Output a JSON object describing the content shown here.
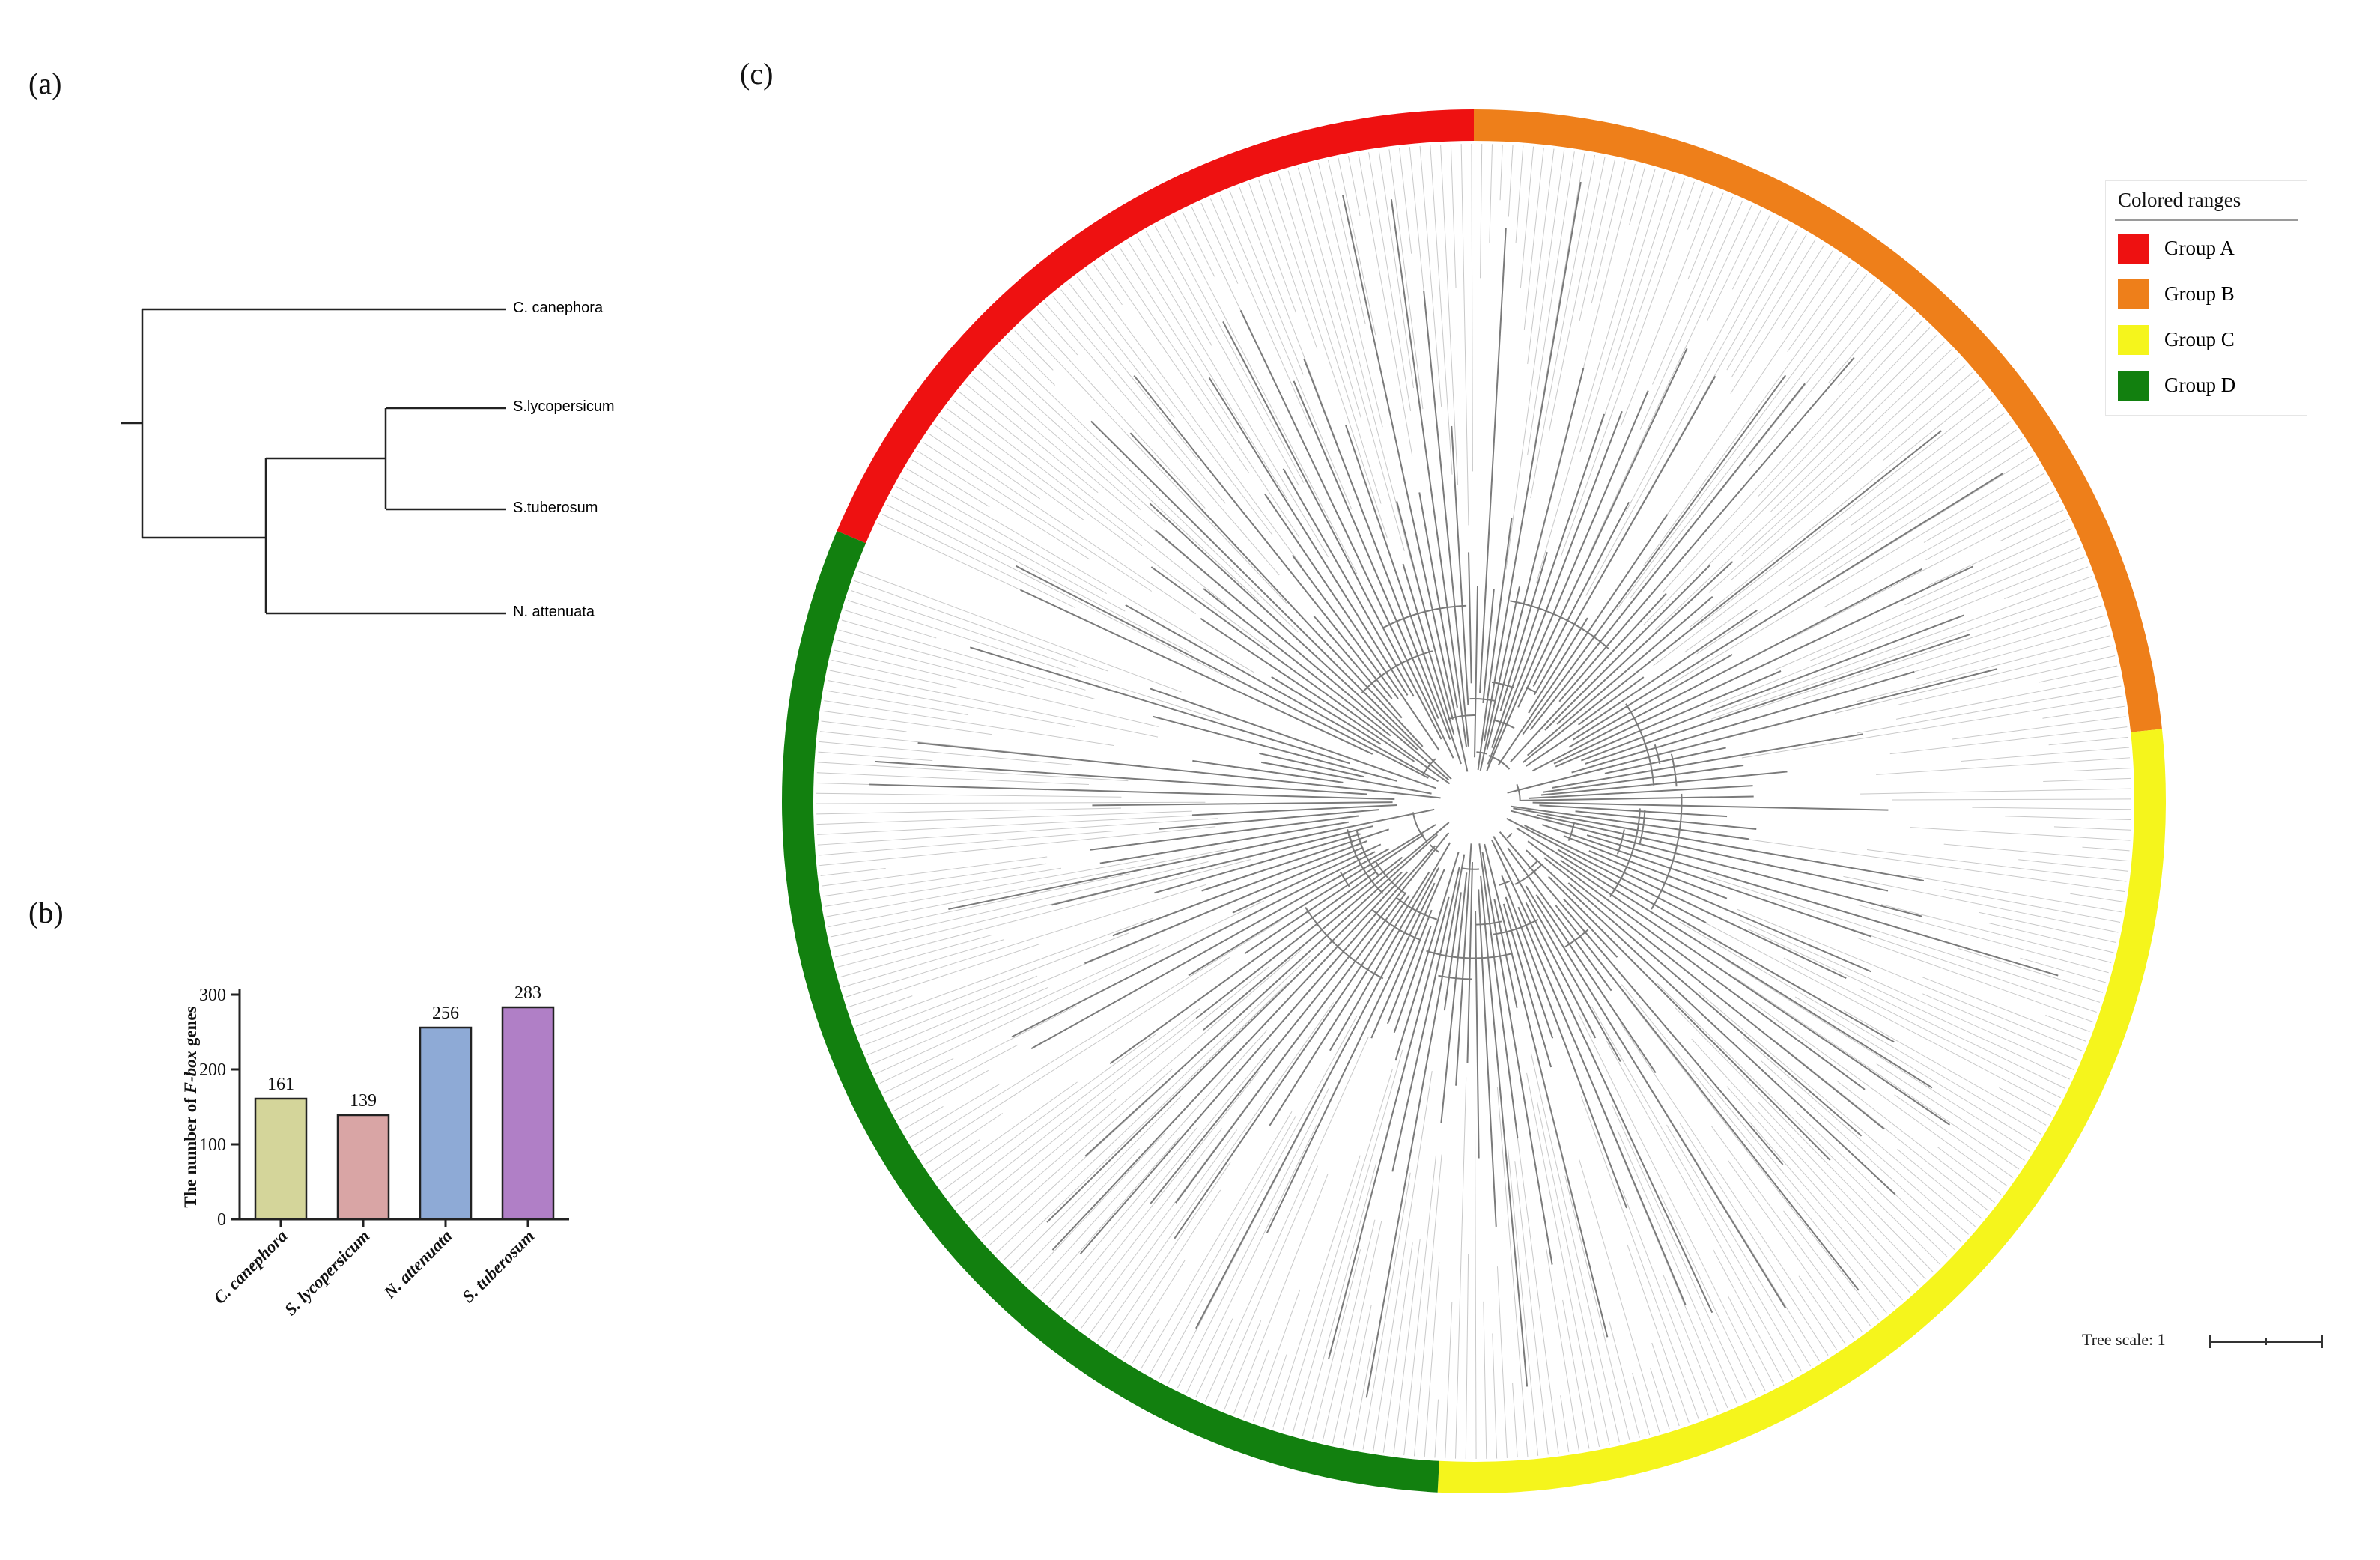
{
  "panels": {
    "a": "(a)",
    "b": "(b)",
    "c": "(c)"
  },
  "species_tree": {
    "taxa": [
      "C. canephora",
      "S.lycopersicum",
      "S.tuberosum",
      "N. attenuata"
    ]
  },
  "chart_data": {
    "type": "bar",
    "categories": [
      "C. canephora",
      "S. lycopersicum",
      "N. attenuata",
      "S. tuberosum"
    ],
    "values": [
      161,
      139,
      256,
      283
    ],
    "colors": [
      "#d4d59a",
      "#d9a5a5",
      "#8eaad6",
      "#b07fc6"
    ],
    "ylabel_prefix": "The number of ",
    "ylabel_italic": "F-box",
    "ylabel_suffix": " genes",
    "yticks": [
      "0",
      "100",
      "200",
      "300"
    ],
    "ylim": [
      0,
      300
    ],
    "data_labels": [
      "161",
      "139",
      "256",
      "283"
    ]
  },
  "phylogeny": {
    "groups": [
      {
        "name": "Group A",
        "color": "#ee1111"
      },
      {
        "name": "Group B",
        "color": "#ee7f1a"
      },
      {
        "name": "Group C",
        "color": "#f5f51c"
      },
      {
        "name": "Group D",
        "color": "#12800f"
      }
    ],
    "legend_title": "Colored ranges",
    "tree_scale_label": "Tree scale: 1"
  }
}
